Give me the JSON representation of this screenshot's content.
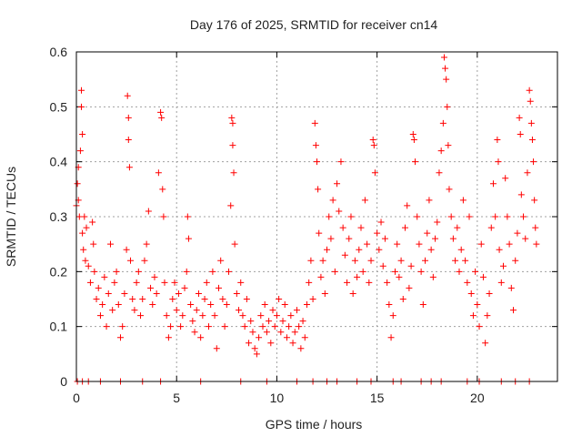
{
  "chart_data": {
    "type": "scatter",
    "title": "Day 176 of 2025, SRMTID for receiver cn14",
    "xlabel": "GPS time / hours",
    "ylabel": "SRMTID / TECUs",
    "xlim": [
      0,
      24
    ],
    "ylim": [
      0,
      0.6
    ],
    "x_ticks": [
      0,
      5,
      10,
      15,
      20
    ],
    "x_tick_labels": [
      "0",
      "5",
      "10",
      "15",
      "20"
    ],
    "y_ticks": [
      0,
      0.1,
      0.2,
      0.3,
      0.4,
      0.5,
      0.6
    ],
    "y_tick_labels": [
      "0",
      "0.1",
      "0.2",
      "0.3",
      "0.4",
      "0.5",
      "0.6"
    ],
    "grid": true,
    "marker": "plus",
    "marker_color": "#ff0000",
    "series": [
      {
        "name": "SRMTID",
        "points": [
          [
            0.0,
            0.32
          ],
          [
            0.05,
            0.36
          ],
          [
            0.1,
            0.39
          ],
          [
            0.1,
            0.33
          ],
          [
            0.15,
            0.3
          ],
          [
            0.2,
            0.42
          ],
          [
            0.25,
            0.53
          ],
          [
            0.25,
            0.5
          ],
          [
            0.3,
            0.45
          ],
          [
            0.3,
            0.27
          ],
          [
            0.35,
            0.24
          ],
          [
            0.4,
            0.3
          ],
          [
            0.45,
            0.22
          ],
          [
            0.5,
            0.28
          ],
          [
            0.6,
            0.21
          ],
          [
            0.7,
            0.18
          ],
          [
            0.8,
            0.29
          ],
          [
            0.85,
            0.25
          ],
          [
            0.9,
            0.2
          ],
          [
            1.0,
            0.15
          ],
          [
            1.1,
            0.17
          ],
          [
            1.2,
            0.12
          ],
          [
            1.3,
            0.14
          ],
          [
            1.4,
            0.19
          ],
          [
            1.5,
            0.1
          ],
          [
            1.6,
            0.16
          ],
          [
            1.7,
            0.25
          ],
          [
            1.8,
            0.13
          ],
          [
            1.9,
            0.18
          ],
          [
            2.0,
            0.2
          ],
          [
            2.1,
            0.14
          ],
          [
            2.2,
            0.08
          ],
          [
            2.3,
            0.1
          ],
          [
            2.4,
            0.16
          ],
          [
            2.5,
            0.24
          ],
          [
            2.55,
            0.52
          ],
          [
            2.6,
            0.48
          ],
          [
            2.6,
            0.44
          ],
          [
            2.65,
            0.39
          ],
          [
            2.7,
            0.22
          ],
          [
            2.8,
            0.15
          ],
          [
            2.9,
            0.13
          ],
          [
            3.0,
            0.18
          ],
          [
            3.1,
            0.2
          ],
          [
            3.2,
            0.12
          ],
          [
            3.3,
            0.15
          ],
          [
            3.4,
            0.22
          ],
          [
            3.5,
            0.25
          ],
          [
            3.6,
            0.31
          ],
          [
            3.7,
            0.17
          ],
          [
            3.8,
            0.14
          ],
          [
            3.9,
            0.19
          ],
          [
            4.0,
            0.16
          ],
          [
            4.1,
            0.38
          ],
          [
            4.2,
            0.49
          ],
          [
            4.25,
            0.48
          ],
          [
            4.3,
            0.35
          ],
          [
            4.35,
            0.3
          ],
          [
            4.4,
            0.18
          ],
          [
            4.5,
            0.12
          ],
          [
            4.6,
            0.08
          ],
          [
            4.7,
            0.1
          ],
          [
            4.8,
            0.15
          ],
          [
            4.9,
            0.18
          ],
          [
            5.0,
            0.13
          ],
          [
            5.1,
            0.16
          ],
          [
            5.2,
            0.1
          ],
          [
            5.3,
            0.12
          ],
          [
            5.4,
            0.17
          ],
          [
            5.5,
            0.2
          ],
          [
            5.55,
            0.3
          ],
          [
            5.6,
            0.26
          ],
          [
            5.7,
            0.14
          ],
          [
            5.8,
            0.11
          ],
          [
            5.9,
            0.09
          ],
          [
            6.0,
            0.13
          ],
          [
            6.1,
            0.16
          ],
          [
            6.2,
            0.08
          ],
          [
            6.3,
            0.12
          ],
          [
            6.4,
            0.15
          ],
          [
            6.5,
            0.18
          ],
          [
            6.6,
            0.1
          ],
          [
            6.7,
            0.14
          ],
          [
            6.8,
            0.2
          ],
          [
            6.9,
            0.12
          ],
          [
            7.0,
            0.06
          ],
          [
            7.1,
            0.17
          ],
          [
            7.2,
            0.22
          ],
          [
            7.3,
            0.15
          ],
          [
            7.4,
            0.1
          ],
          [
            7.5,
            0.14
          ],
          [
            7.6,
            0.2
          ],
          [
            7.7,
            0.32
          ],
          [
            7.75,
            0.48
          ],
          [
            7.8,
            0.47
          ],
          [
            7.8,
            0.43
          ],
          [
            7.85,
            0.38
          ],
          [
            7.9,
            0.25
          ],
          [
            8.0,
            0.16
          ],
          [
            8.1,
            0.13
          ],
          [
            8.2,
            0.18
          ],
          [
            8.3,
            0.12
          ],
          [
            8.4,
            0.1
          ],
          [
            8.5,
            0.15
          ],
          [
            8.6,
            0.07
          ],
          [
            8.7,
            0.11
          ],
          [
            8.8,
            0.09
          ],
          [
            8.9,
            0.06
          ],
          [
            9.0,
            0.05
          ],
          [
            9.1,
            0.08
          ],
          [
            9.2,
            0.12
          ],
          [
            9.3,
            0.1
          ],
          [
            9.4,
            0.14
          ],
          [
            9.5,
            0.09
          ],
          [
            9.6,
            0.11
          ],
          [
            9.7,
            0.07
          ],
          [
            9.8,
            0.13
          ],
          [
            9.9,
            0.1
          ],
          [
            10.0,
            0.12
          ],
          [
            10.1,
            0.15
          ],
          [
            10.2,
            0.09
          ],
          [
            10.3,
            0.11
          ],
          [
            10.4,
            0.14
          ],
          [
            10.5,
            0.08
          ],
          [
            10.6,
            0.1
          ],
          [
            10.7,
            0.12
          ],
          [
            10.8,
            0.07
          ],
          [
            10.9,
            0.09
          ],
          [
            11.0,
            0.13
          ],
          [
            11.1,
            0.1
          ],
          [
            11.2,
            0.06
          ],
          [
            11.3,
            0.11
          ],
          [
            11.4,
            0.08
          ],
          [
            11.5,
            0.14
          ],
          [
            11.6,
            0.18
          ],
          [
            11.7,
            0.22
          ],
          [
            11.8,
            0.15
          ],
          [
            11.9,
            0.47
          ],
          [
            11.95,
            0.43
          ],
          [
            12.0,
            0.4
          ],
          [
            12.05,
            0.35
          ],
          [
            12.1,
            0.27
          ],
          [
            12.2,
            0.19
          ],
          [
            12.3,
            0.22
          ],
          [
            12.4,
            0.16
          ],
          [
            12.5,
            0.24
          ],
          [
            12.6,
            0.3
          ],
          [
            12.7,
            0.26
          ],
          [
            12.8,
            0.33
          ],
          [
            12.9,
            0.2
          ],
          [
            13.0,
            0.36
          ],
          [
            13.1,
            0.31
          ],
          [
            13.2,
            0.4
          ],
          [
            13.3,
            0.28
          ],
          [
            13.4,
            0.23
          ],
          [
            13.5,
            0.18
          ],
          [
            13.6,
            0.26
          ],
          [
            13.7,
            0.3
          ],
          [
            13.8,
            0.16
          ],
          [
            13.9,
            0.22
          ],
          [
            14.0,
            0.19
          ],
          [
            14.1,
            0.24
          ],
          [
            14.2,
            0.28
          ],
          [
            14.3,
            0.2
          ],
          [
            14.4,
            0.33
          ],
          [
            14.5,
            0.25
          ],
          [
            14.6,
            0.18
          ],
          [
            14.7,
            0.22
          ],
          [
            14.8,
            0.44
          ],
          [
            14.85,
            0.43
          ],
          [
            14.9,
            0.38
          ],
          [
            15.0,
            0.27
          ],
          [
            15.1,
            0.24
          ],
          [
            15.2,
            0.29
          ],
          [
            15.3,
            0.21
          ],
          [
            15.4,
            0.26
          ],
          [
            15.5,
            0.18
          ],
          [
            15.6,
            0.14
          ],
          [
            15.7,
            0.08
          ],
          [
            15.8,
            0.12
          ],
          [
            15.9,
            0.2
          ],
          [
            16.0,
            0.25
          ],
          [
            16.1,
            0.19
          ],
          [
            16.2,
            0.22
          ],
          [
            16.3,
            0.15
          ],
          [
            16.4,
            0.28
          ],
          [
            16.5,
            0.32
          ],
          [
            16.6,
            0.17
          ],
          [
            16.7,
            0.21
          ],
          [
            16.8,
            0.45
          ],
          [
            16.85,
            0.44
          ],
          [
            16.9,
            0.4
          ],
          [
            17.0,
            0.3
          ],
          [
            17.1,
            0.25
          ],
          [
            17.2,
            0.2
          ],
          [
            17.3,
            0.14
          ],
          [
            17.4,
            0.22
          ],
          [
            17.5,
            0.27
          ],
          [
            17.6,
            0.33
          ],
          [
            17.7,
            0.24
          ],
          [
            17.8,
            0.19
          ],
          [
            17.9,
            0.26
          ],
          [
            18.0,
            0.29
          ],
          [
            18.1,
            0.38
          ],
          [
            18.2,
            0.42
          ],
          [
            18.3,
            0.47
          ],
          [
            18.35,
            0.59
          ],
          [
            18.4,
            0.57
          ],
          [
            18.45,
            0.55
          ],
          [
            18.5,
            0.5
          ],
          [
            18.55,
            0.43
          ],
          [
            18.6,
            0.35
          ],
          [
            18.7,
            0.3
          ],
          [
            18.8,
            0.26
          ],
          [
            18.9,
            0.22
          ],
          [
            19.0,
            0.28
          ],
          [
            19.1,
            0.2
          ],
          [
            19.2,
            0.24
          ],
          [
            19.3,
            0.33
          ],
          [
            19.4,
            0.22
          ],
          [
            19.5,
            0.18
          ],
          [
            19.6,
            0.3
          ],
          [
            19.7,
            0.16
          ],
          [
            19.8,
            0.12
          ],
          [
            19.9,
            0.2
          ],
          [
            20.0,
            0.14
          ],
          [
            20.1,
            0.1
          ],
          [
            20.2,
            0.25
          ],
          [
            20.3,
            0.19
          ],
          [
            20.4,
            0.07
          ],
          [
            20.5,
            0.12
          ],
          [
            20.6,
            0.16
          ],
          [
            20.7,
            0.28
          ],
          [
            20.8,
            0.36
          ],
          [
            20.9,
            0.3
          ],
          [
            21.0,
            0.44
          ],
          [
            21.05,
            0.4
          ],
          [
            21.1,
            0.24
          ],
          [
            21.2,
            0.18
          ],
          [
            21.3,
            0.21
          ],
          [
            21.4,
            0.37
          ],
          [
            21.5,
            0.3
          ],
          [
            21.6,
            0.25
          ],
          [
            21.7,
            0.17
          ],
          [
            21.8,
            0.13
          ],
          [
            21.9,
            0.22
          ],
          [
            22.0,
            0.27
          ],
          [
            22.1,
            0.48
          ],
          [
            22.15,
            0.45
          ],
          [
            22.2,
            0.34
          ],
          [
            22.3,
            0.3
          ],
          [
            22.4,
            0.26
          ],
          [
            22.5,
            0.38
          ],
          [
            22.6,
            0.53
          ],
          [
            22.65,
            0.51
          ],
          [
            22.7,
            0.47
          ],
          [
            22.75,
            0.44
          ],
          [
            22.8,
            0.4
          ],
          [
            22.85,
            0.33
          ],
          [
            22.9,
            0.28
          ],
          [
            22.95,
            0.25
          ],
          [
            0.05,
            0.0
          ],
          [
            0.3,
            0.0
          ],
          [
            0.6,
            0.0
          ],
          [
            1.2,
            0.0
          ],
          [
            2.2,
            0.0
          ],
          [
            3.3,
            0.0
          ],
          [
            4.2,
            0.0
          ],
          [
            6.2,
            0.0
          ],
          [
            8.2,
            0.0
          ],
          [
            9.5,
            0.0
          ],
          [
            11.0,
            0.0
          ],
          [
            11.8,
            0.0
          ],
          [
            12.5,
            0.0
          ],
          [
            13.0,
            0.0
          ],
          [
            14.0,
            0.0
          ],
          [
            14.7,
            0.0
          ],
          [
            15.8,
            0.0
          ],
          [
            16.2,
            0.0
          ],
          [
            17.2,
            0.0
          ],
          [
            17.7,
            0.0
          ],
          [
            18.2,
            0.0
          ],
          [
            19.5,
            0.0
          ],
          [
            20.1,
            0.0
          ],
          [
            21.2,
            0.0
          ],
          [
            21.9,
            0.0
          ],
          [
            22.6,
            0.0
          ]
        ]
      }
    ]
  }
}
